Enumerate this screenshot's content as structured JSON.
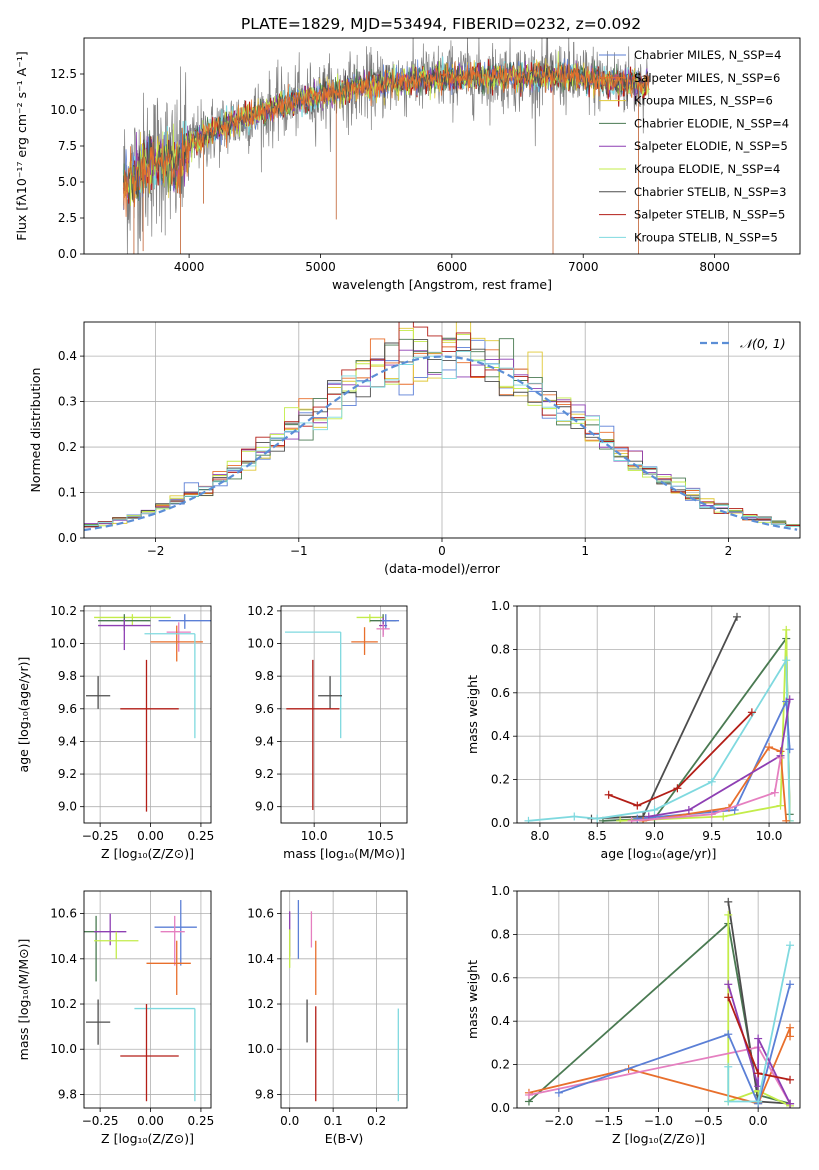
{
  "title": "PLATE=1829, MJD=53494, FIBERID=0232, z=0.092",
  "colors": {
    "chabrier_miles": "#5b7fd6",
    "salpeter_miles": "#e86f2c",
    "kroupa_miles": "#e0c836",
    "chabrier_elodie": "#4a7a52",
    "salpeter_elodie": "#8e3fb3",
    "kroupa_elodie": "#c3ec4a",
    "chabrier_stelib": "#4d4d4d",
    "salpeter_stelib": "#b31e17",
    "kroupa_stelib": "#7fd9df",
    "pink": "#e57fc0",
    "normal": "#5b8ed6",
    "grid": "#b0b0b0"
  },
  "chart_data": [
    {
      "id": "spectrum",
      "type": "line",
      "xlabel": "wavelength [Angstrom, rest frame]",
      "ylabel": "Flux [fλ10⁻¹⁷ erg cm⁻² s⁻¹ A⁻¹]",
      "xlim": [
        3200,
        8650
      ],
      "ylim": [
        0,
        15
      ],
      "xticks": [
        4000,
        5000,
        6000,
        7000,
        8000
      ],
      "yticks": [
        0.0,
        2.5,
        5.0,
        7.5,
        10.0,
        12.5
      ],
      "grid": false,
      "legend_position": "upper-right",
      "legend": [
        {
          "label": "Chabrier MILES, N_SSP=4",
          "color_key": "chabrier_miles"
        },
        {
          "label": "Salpeter MILES, N_SSP=6",
          "color_key": "salpeter_miles"
        },
        {
          "label": "Kroupa MILES, N_SSP=6",
          "color_key": "kroupa_miles"
        },
        {
          "label": "Chabrier ELODIE, N_SSP=4",
          "color_key": "chabrier_elodie"
        },
        {
          "label": "Salpeter ELODIE, N_SSP=5",
          "color_key": "salpeter_elodie"
        },
        {
          "label": "Kroupa ELODIE, N_SSP=4",
          "color_key": "kroupa_elodie"
        },
        {
          "label": "Chabrier STELIB, N_SSP=3",
          "color_key": "chabrier_stelib"
        },
        {
          "label": "Salpeter STELIB, N_SSP=5",
          "color_key": "salpeter_stelib"
        },
        {
          "label": "Kroupa STELIB, N_SSP=5",
          "color_key": "kroupa_stelib"
        }
      ],
      "continuum": {
        "x": [
          3500,
          3600,
          3700,
          3800,
          3900,
          4000,
          4100,
          4200,
          4300,
          4400,
          4600,
          4800,
          5000,
          5200,
          5400,
          5600,
          5800,
          6000,
          6200,
          6400,
          6600,
          6800,
          7000,
          7200,
          7400,
          7500
        ],
        "y": [
          5.0,
          5.5,
          6.3,
          6.8,
          6.0,
          7.5,
          8.2,
          8.6,
          9.0,
          9.4,
          10.0,
          10.6,
          11.0,
          11.4,
          11.7,
          12.0,
          12.1,
          12.3,
          12.3,
          12.4,
          12.3,
          12.4,
          12.2,
          12.0,
          11.8,
          11.8
        ]
      },
      "data_range": [
        3500,
        7500
      ]
    },
    {
      "id": "residuals",
      "type": "step",
      "xlabel": "(data-model)/error",
      "ylabel": "Normed distribution",
      "xlim": [
        -2.5,
        2.5
      ],
      "ylim": [
        0,
        0.475
      ],
      "xticks": [
        -2,
        -1,
        0,
        1,
        2
      ],
      "yticks": [
        0.0,
        0.1,
        0.2,
        0.3,
        0.4
      ],
      "grid": true,
      "legend_position": "upper-right",
      "legend_label": "𝒩(0, 1)",
      "bin_width": 0.1,
      "histogram_color_keys": [
        "chabrier_miles",
        "salpeter_miles",
        "kroupa_miles",
        "chabrier_elodie",
        "salpeter_elodie",
        "kroupa_elodie",
        "chabrier_stelib",
        "salpeter_stelib",
        "kroupa_stelib"
      ]
    },
    {
      "id": "age_vs_Z",
      "type": "errorbar",
      "xlabel": "Z [log₁₀(Z/Z⊙)]",
      "ylabel": "age  [log₁₀(age/yr)]",
      "xlim": [
        -0.33,
        0.3
      ],
      "ylim": [
        8.9,
        10.23
      ],
      "xticks": [
        -0.25,
        0.0,
        0.25
      ],
      "yticks": [
        9.0,
        9.2,
        9.4,
        9.6,
        9.8,
        10.0,
        10.2
      ],
      "grid": true,
      "points": [
        {
          "x": -0.09,
          "y": 10.16,
          "xerr": [
            0.19,
            0.19
          ],
          "yerr": [
            0.05,
            0.02
          ],
          "color_key": "kroupa_elodie"
        },
        {
          "x": -0.13,
          "y": 10.14,
          "xerr": [
            0.13,
            0.13
          ],
          "yerr": [
            0.06,
            0.04
          ],
          "color_key": "chabrier_elodie"
        },
        {
          "x": -0.13,
          "y": 10.11,
          "xerr": [
            0.13,
            0.13
          ],
          "yerr": [
            0.15,
            0.04
          ],
          "color_key": "salpeter_elodie"
        },
        {
          "x": 0.17,
          "y": 10.14,
          "xerr": [
            0.13,
            0.13
          ],
          "yerr": [
            0.05,
            0.04
          ],
          "color_key": "chabrier_miles"
        },
        {
          "x": 0.14,
          "y": 10.07,
          "xerr": [
            0.06,
            0.06
          ],
          "yerr": [
            0.12,
            0.06
          ],
          "color_key": "pink"
        },
        {
          "x": 0.13,
          "y": 10.01,
          "xerr": [
            0.13,
            0.13
          ],
          "yerr": [
            0.12,
            0.1
          ],
          "color_key": "salpeter_miles"
        },
        {
          "x": 0.22,
          "y": 10.06,
          "xerr": [
            0.25,
            0.0
          ],
          "yerr": [
            0.64,
            0.0
          ],
          "color_key": "kroupa_stelib"
        },
        {
          "x": -0.26,
          "y": 9.68,
          "xerr": [
            0.06,
            0.06
          ],
          "yerr": [
            0.08,
            0.12
          ],
          "color_key": "chabrier_stelib"
        },
        {
          "x": -0.02,
          "y": 9.6,
          "xerr": [
            0.13,
            0.16
          ],
          "yerr": [
            0.63,
            0.3
          ],
          "color_key": "salpeter_stelib"
        }
      ]
    },
    {
      "id": "age_vs_mass",
      "type": "errorbar",
      "xlabel": "mass [log₁₀(M/M⊙)]",
      "ylabel": "",
      "xlim": [
        9.75,
        10.7
      ],
      "ylim": [
        8.9,
        10.23
      ],
      "xticks": [
        10.0,
        10.5
      ],
      "yticks": [
        9.0,
        9.2,
        9.4,
        9.6,
        9.8,
        10.0,
        10.2
      ],
      "grid": true,
      "points": [
        {
          "x": 10.42,
          "y": 10.16,
          "xerr": [
            0.1,
            0.1
          ],
          "yerr": [
            0.03,
            0.02
          ],
          "color_key": "kroupa_elodie"
        },
        {
          "x": 10.52,
          "y": 10.14,
          "xerr": [
            0.1,
            0.1
          ],
          "yerr": [
            0.05,
            0.04
          ],
          "color_key": "chabrier_elodie"
        },
        {
          "x": 10.52,
          "y": 10.11,
          "xerr": [
            0.03,
            0.03
          ],
          "yerr": [
            0.06,
            0.05
          ],
          "color_key": "salpeter_elodie"
        },
        {
          "x": 10.54,
          "y": 10.14,
          "xerr": [
            0.03,
            0.1
          ],
          "yerr": [
            0.05,
            0.04
          ],
          "color_key": "chabrier_miles"
        },
        {
          "x": 10.52,
          "y": 10.09,
          "xerr": [
            0.05,
            0.05
          ],
          "yerr": [
            0.05,
            0.03
          ],
          "color_key": "pink"
        },
        {
          "x": 10.38,
          "y": 10.01,
          "xerr": [
            0.1,
            0.1
          ],
          "yerr": [
            0.08,
            0.09
          ],
          "color_key": "salpeter_miles"
        },
        {
          "x": 10.2,
          "y": 10.07,
          "xerr": [
            0.42,
            0.0
          ],
          "yerr": [
            0.65,
            0.0
          ],
          "color_key": "kroupa_stelib"
        },
        {
          "x": 10.12,
          "y": 9.68,
          "xerr": [
            0.09,
            0.09
          ],
          "yerr": [
            0.08,
            0.12
          ],
          "color_key": "chabrier_stelib"
        },
        {
          "x": 9.99,
          "y": 9.6,
          "xerr": [
            0.2,
            0.2
          ],
          "yerr": [
            0.62,
            0.3
          ],
          "color_key": "salpeter_stelib"
        }
      ]
    },
    {
      "id": "massweight_vs_age",
      "type": "line",
      "xlabel": "age  [log₁₀(age/yr)]",
      "ylabel": "mass weight",
      "xlim": [
        7.8,
        10.27
      ],
      "ylim": [
        0,
        1.0
      ],
      "xticks": [
        8.0,
        8.5,
        9.0,
        9.5,
        10.0
      ],
      "yticks": [
        0.0,
        0.2,
        0.4,
        0.6,
        0.8,
        1.0
      ],
      "grid": true,
      "series": [
        {
          "color_key": "chabrier_stelib",
          "x": [
            8.45,
            8.9,
            9.72
          ],
          "y": [
            0.02,
            0.03,
            0.95
          ]
        },
        {
          "color_key": "chabrier_elodie",
          "x": [
            8.55,
            9.0,
            10.15,
            10.18
          ],
          "y": [
            0.01,
            0.02,
            0.85,
            0.04
          ]
        },
        {
          "color_key": "kroupa_elodie",
          "x": [
            8.7,
            9.6,
            10.1,
            10.15,
            10.18
          ],
          "y": [
            0.01,
            0.03,
            0.08,
            0.89,
            0.01
          ]
        },
        {
          "color_key": "kroupa_stelib",
          "x": [
            7.9,
            8.3,
            8.5,
            9.0,
            9.5,
            10.15,
            10.18
          ],
          "y": [
            0.01,
            0.03,
            0.02,
            0.06,
            0.19,
            0.75,
            0.01
          ]
        },
        {
          "color_key": "salpeter_stelib",
          "x": [
            8.6,
            8.85,
            9.2,
            9.85
          ],
          "y": [
            0.13,
            0.08,
            0.16,
            0.51
          ]
        },
        {
          "color_key": "chabrier_miles",
          "x": [
            8.85,
            9.7,
            10.15,
            10.18
          ],
          "y": [
            0.02,
            0.06,
            0.56,
            0.34
          ]
        },
        {
          "color_key": "salpeter_miles",
          "x": [
            8.9,
            9.65,
            10.0,
            10.1,
            10.15
          ],
          "y": [
            0.01,
            0.07,
            0.35,
            0.33,
            0.01
          ]
        },
        {
          "color_key": "salpeter_elodie",
          "x": [
            8.95,
            9.3,
            10.1,
            10.18
          ],
          "y": [
            0.03,
            0.06,
            0.31,
            0.57
          ]
        },
        {
          "color_key": "pink",
          "x": [
            8.8,
            9.5,
            10.05,
            10.1
          ],
          "y": [
            0.01,
            0.04,
            0.14,
            0.3
          ]
        }
      ]
    },
    {
      "id": "mass_vs_Z",
      "type": "errorbar",
      "xlabel": "Z [log₁₀(Z/Z⊙)]",
      "ylabel": "mass [log₁₀(M/M⊙)]",
      "xlim": [
        -0.33,
        0.3
      ],
      "ylim": [
        9.74,
        10.7
      ],
      "xticks": [
        -0.25,
        0.0,
        0.25
      ],
      "yticks": [
        9.8,
        10.0,
        10.2,
        10.4,
        10.6
      ],
      "grid": true,
      "points": [
        {
          "x": -0.27,
          "y": 10.52,
          "xerr": [
            0.06,
            0.0
          ],
          "yerr": [
            0.22,
            0.07
          ],
          "color_key": "chabrier_elodie"
        },
        {
          "x": -0.2,
          "y": 10.52,
          "xerr": [
            0.08,
            0.08
          ],
          "yerr": [
            0.06,
            0.08
          ],
          "color_key": "salpeter_elodie"
        },
        {
          "x": -0.17,
          "y": 10.48,
          "xerr": [
            0.11,
            0.11
          ],
          "yerr": [
            0.08,
            0.04
          ],
          "color_key": "kroupa_elodie"
        },
        {
          "x": 0.15,
          "y": 10.54,
          "xerr": [
            0.13,
            0.08
          ],
          "yerr": [
            0.17,
            0.12
          ],
          "color_key": "chabrier_miles"
        },
        {
          "x": 0.12,
          "y": 10.52,
          "xerr": [
            0.07,
            0.05
          ],
          "yerr": [
            0.15,
            0.07
          ],
          "color_key": "pink"
        },
        {
          "x": 0.13,
          "y": 10.38,
          "xerr": [
            0.15,
            0.07
          ],
          "yerr": [
            0.14,
            0.1
          ],
          "color_key": "salpeter_miles"
        },
        {
          "x": 0.22,
          "y": 10.18,
          "xerr": [
            0.3,
            0.0
          ],
          "yerr": [
            0.41,
            0.0
          ],
          "color_key": "kroupa_stelib"
        },
        {
          "x": -0.26,
          "y": 10.12,
          "xerr": [
            0.06,
            0.06
          ],
          "yerr": [
            0.1,
            0.1
          ],
          "color_key": "chabrier_stelib"
        },
        {
          "x": -0.02,
          "y": 9.97,
          "xerr": [
            0.13,
            0.16
          ],
          "yerr": [
            0.2,
            0.23
          ],
          "color_key": "salpeter_stelib"
        }
      ]
    },
    {
      "id": "mass_vs_ebv",
      "type": "errorbar",
      "xlabel": "E(B-V)",
      "ylabel": "",
      "xlim": [
        -0.02,
        0.27
      ],
      "ylim": [
        9.74,
        10.7
      ],
      "xticks": [
        0.0,
        0.1,
        0.2
      ],
      "yticks": [
        9.8,
        10.0,
        10.2,
        10.4,
        10.6
      ],
      "grid": true,
      "points": [
        {
          "x": 0.0,
          "y": 10.52,
          "xerr": [
            0,
            0
          ],
          "yerr": [
            0.11,
            0.09
          ],
          "color_key": "salpeter_elodie"
        },
        {
          "x": 0.0,
          "y": 10.46,
          "xerr": [
            0,
            0
          ],
          "yerr": [
            0.1,
            0.07
          ],
          "color_key": "kroupa_elodie"
        },
        {
          "x": 0.02,
          "y": 10.54,
          "xerr": [
            0,
            0
          ],
          "yerr": [
            0.14,
            0.12
          ],
          "color_key": "chabrier_miles"
        },
        {
          "x": 0.05,
          "y": 10.52,
          "xerr": [
            0,
            0
          ],
          "yerr": [
            0.07,
            0.09
          ],
          "color_key": "pink"
        },
        {
          "x": 0.06,
          "y": 10.38,
          "xerr": [
            0,
            0
          ],
          "yerr": [
            0.14,
            0.1
          ],
          "color_key": "salpeter_miles"
        },
        {
          "x": 0.04,
          "y": 10.12,
          "xerr": [
            0,
            0
          ],
          "yerr": [
            0.09,
            0.1
          ],
          "color_key": "chabrier_stelib"
        },
        {
          "x": 0.06,
          "y": 9.99,
          "xerr": [
            0,
            0
          ],
          "yerr": [
            0.22,
            0.2
          ],
          "color_key": "salpeter_stelib"
        },
        {
          "x": 0.25,
          "y": 9.98,
          "xerr": [
            0,
            0
          ],
          "yerr": [
            0.21,
            0.2
          ],
          "color_key": "kroupa_stelib"
        }
      ]
    },
    {
      "id": "massweight_vs_Z",
      "type": "line",
      "xlabel": "Z [log₁₀(Z/Z⊙)]",
      "ylabel": "mass weight",
      "xlim": [
        -2.42,
        0.42
      ],
      "ylim": [
        0,
        1.0
      ],
      "xticks": [
        -2.0,
        -1.5,
        -1.0,
        -0.5,
        0.0
      ],
      "yticks": [
        0.0,
        0.2,
        0.4,
        0.6,
        0.8,
        1.0
      ],
      "grid": true,
      "series": [
        {
          "color_key": "chabrier_elodie",
          "x": [
            -2.3,
            -0.3,
            0.0,
            0.32
          ],
          "y": [
            0.03,
            0.85,
            0.06,
            0.02
          ]
        },
        {
          "color_key": "chabrier_stelib",
          "x": [
            -0.3,
            0.0,
            0.32
          ],
          "y": [
            0.95,
            0.03,
            0.02
          ]
        },
        {
          "color_key": "kroupa_elodie",
          "x": [
            -0.3,
            -0.3,
            0.0,
            0.32
          ],
          "y": [
            0.89,
            0.03,
            0.08,
            0.01
          ]
        },
        {
          "color_key": "salpeter_miles",
          "x": [
            -2.3,
            -1.3,
            0.0,
            0.32,
            0.32
          ],
          "y": [
            0.07,
            0.18,
            0.02,
            0.37,
            0.33
          ]
        },
        {
          "color_key": "pink",
          "x": [
            -2.3,
            0.0,
            0.32
          ],
          "y": [
            0.06,
            0.28,
            0.02
          ]
        },
        {
          "color_key": "chabrier_miles",
          "x": [
            -2.0,
            -0.3,
            0.0,
            0.32
          ],
          "y": [
            0.07,
            0.34,
            0.02,
            0.57
          ]
        },
        {
          "color_key": "salpeter_elodie",
          "x": [
            -0.3,
            0.0,
            0.0,
            0.32
          ],
          "y": [
            0.57,
            0.1,
            0.32,
            0.02
          ]
        },
        {
          "color_key": "salpeter_stelib",
          "x": [
            -0.3,
            0.0,
            0.32
          ],
          "y": [
            0.51,
            0.16,
            0.13
          ]
        },
        {
          "color_key": "kroupa_stelib",
          "x": [
            -0.3,
            -0.3,
            0.0,
            0.32
          ],
          "y": [
            0.19,
            0.03,
            0.03,
            0.75
          ]
        }
      ]
    }
  ]
}
